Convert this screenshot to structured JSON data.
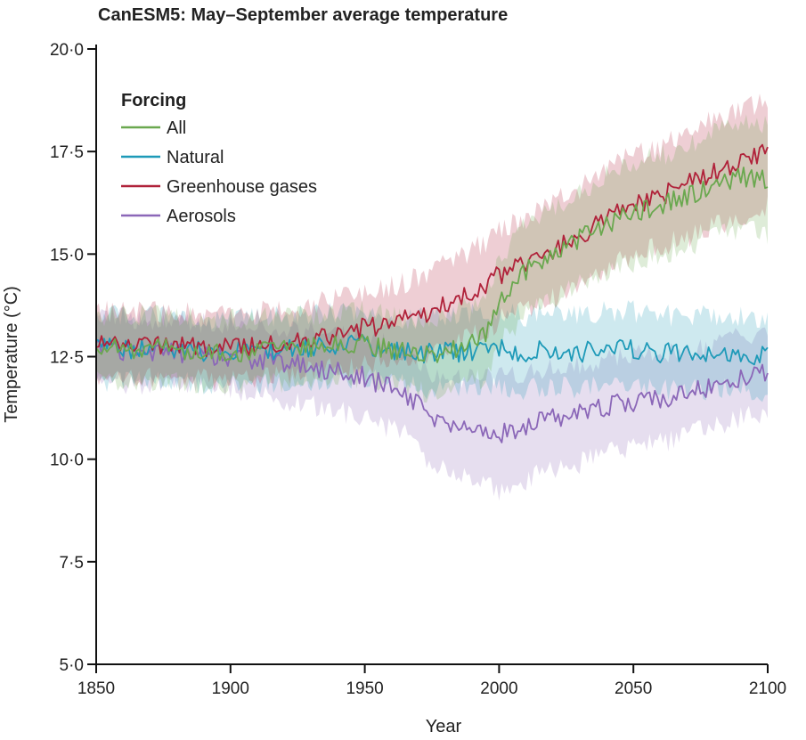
{
  "chart_data": {
    "type": "line",
    "title": "CanESM5: May–September average temperature",
    "xlabel": "Year",
    "ylabel": "Temperature (°C)",
    "xlim": [
      1850,
      2100
    ],
    "ylim": [
      5.0,
      20.0
    ],
    "xticks": [
      1850,
      1900,
      1950,
      2000,
      2050,
      2100
    ],
    "yticks": [
      5.0,
      7.5,
      10.0,
      12.5,
      15.0,
      17.5,
      20.0
    ],
    "ytick_labels": [
      "5·0",
      "7·5",
      "10·0",
      "12·5",
      "15·0",
      "17·5",
      "20·0"
    ],
    "xtick_labels": [
      "1850",
      "1900",
      "1950",
      "2000",
      "2050",
      "2100"
    ],
    "legend": {
      "title": "Forcing",
      "position": "top-left"
    },
    "shaded_range": "ensemble spread",
    "series": [
      {
        "name": "All",
        "color": "#6aa84f",
        "years": [
          1850,
          1875,
          1900,
          1925,
          1950,
          1965,
          1975,
          1985,
          1995,
          2000,
          2010,
          2020,
          2030,
          2040,
          2050,
          2060,
          2070,
          2080,
          2090,
          2100
        ],
        "mean": [
          12.7,
          12.7,
          12.6,
          12.7,
          12.8,
          12.6,
          12.5,
          12.7,
          13.0,
          13.8,
          14.6,
          15.0,
          15.4,
          15.7,
          16.0,
          16.2,
          16.4,
          16.7,
          16.9,
          16.8
        ],
        "spread": [
          0.8,
          0.8,
          0.8,
          0.8,
          0.8,
          0.8,
          0.9,
          0.9,
          1.0,
          1.0,
          1.1,
          1.1,
          1.1,
          1.2,
          1.2,
          1.2,
          1.2,
          1.3,
          1.3,
          1.3
        ]
      },
      {
        "name": "Natural",
        "color": "#1e9ab8",
        "years": [
          1850,
          1875,
          1900,
          1925,
          1950,
          1965,
          1975,
          1985,
          1995,
          2000,
          2010,
          2020,
          2030,
          2040,
          2050,
          2060,
          2070,
          2080,
          2090,
          2100
        ],
        "mean": [
          12.7,
          12.7,
          12.6,
          12.7,
          12.8,
          12.6,
          12.6,
          12.6,
          12.7,
          12.7,
          12.6,
          12.7,
          12.6,
          12.7,
          12.7,
          12.6,
          12.6,
          12.6,
          12.6,
          12.5
        ],
        "spread": [
          0.8,
          0.8,
          0.8,
          0.8,
          0.8,
          0.8,
          0.9,
          0.9,
          0.9,
          0.9,
          0.9,
          0.9,
          0.9,
          0.9,
          0.9,
          0.9,
          0.9,
          0.9,
          0.9,
          0.9
        ]
      },
      {
        "name": "Greenhouse gases",
        "color": "#b0223a",
        "years": [
          1850,
          1875,
          1900,
          1925,
          1950,
          1965,
          1975,
          1985,
          1995,
          2000,
          2010,
          2020,
          2030,
          2040,
          2050,
          2060,
          2070,
          2080,
          2090,
          2100
        ],
        "mean": [
          12.8,
          12.8,
          12.7,
          12.9,
          13.2,
          13.4,
          13.6,
          13.9,
          14.2,
          14.5,
          14.8,
          15.1,
          15.4,
          15.9,
          16.2,
          16.4,
          16.7,
          17.0,
          17.2,
          17.5
        ],
        "spread": [
          0.8,
          0.8,
          0.8,
          0.8,
          0.9,
          0.9,
          1.0,
          1.0,
          1.1,
          1.1,
          1.1,
          1.2,
          1.2,
          1.2,
          1.2,
          1.2,
          1.3,
          1.3,
          1.3,
          1.3
        ]
      },
      {
        "name": "Aerosols",
        "color": "#8b67b8",
        "years": [
          1850,
          1875,
          1900,
          1925,
          1950,
          1965,
          1975,
          1985,
          1995,
          2000,
          2010,
          2020,
          2030,
          2040,
          2050,
          2060,
          2070,
          2080,
          2090,
          2100
        ],
        "mean": [
          12.7,
          12.6,
          12.5,
          12.3,
          12.0,
          11.6,
          11.0,
          10.8,
          10.7,
          10.6,
          10.8,
          11.0,
          11.1,
          11.3,
          11.4,
          11.5,
          11.6,
          11.8,
          12.0,
          12.1
        ],
        "spread": [
          0.8,
          0.8,
          0.8,
          0.9,
          1.0,
          1.0,
          1.1,
          1.2,
          1.3,
          1.4,
          1.3,
          1.2,
          1.2,
          1.1,
          1.1,
          1.1,
          1.0,
          1.0,
          1.0,
          1.0
        ]
      }
    ]
  }
}
